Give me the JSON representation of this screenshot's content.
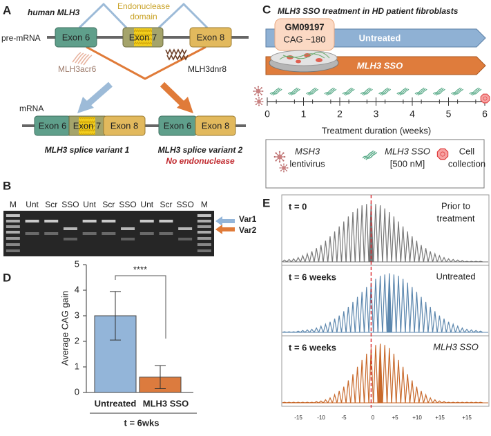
{
  "panel_a": {
    "label": "A",
    "gene": "human MLH3",
    "domain_line1": "Endonuclease",
    "domain_line2": "domain",
    "pre_mrna": "pre-mRNA",
    "exons": [
      "Exon 6",
      "Exon 7",
      "Exon 8"
    ],
    "sso1": "MLH3acr6",
    "sso2": "MLH3dnr8",
    "mrna": "mRNA",
    "variant1_exons": [
      "Exon 6",
      "Exon 7",
      "Exon 8"
    ],
    "variant2_exons": [
      "Exon 6",
      "Exon 8"
    ],
    "variant1": "MLH3 splice variant 1",
    "variant2": "MLH3 splice variant 2",
    "variant2_note": "No endonuclease"
  },
  "panel_b": {
    "label": "B",
    "lanes": [
      "M",
      "Unt",
      "Scr",
      "SSO",
      "Unt",
      "Scr",
      "SSO",
      "Unt",
      "Scr",
      "SSO",
      "M"
    ],
    "bands": [
      "Var1",
      "Var2"
    ]
  },
  "panel_c": {
    "label": "C",
    "title": "MLH3 SSO treatment in HD patient fibroblasts",
    "cell_line": "GM09197",
    "cag": "CAG ~180",
    "arms": [
      "Untreated",
      "MLH3 SSO"
    ],
    "xlim": [
      0,
      6
    ],
    "xticks": [
      0,
      1,
      2,
      3,
      4,
      5,
      6
    ],
    "xlabel": "Treatment duration (weeks)",
    "legend": [
      {
        "line1": "MSH3",
        "line2": "lentivirus"
      },
      {
        "line1": "MLH3 SSO",
        "line2": "[500 nM]"
      },
      {
        "line1": "Cell",
        "line2": "collection"
      }
    ]
  },
  "chart_data": {
    "type": "bar",
    "label": "D",
    "ylabel": "Average CAG gain",
    "categories": [
      "Untreated",
      "MLH3 SSO"
    ],
    "values": [
      3,
      0.6
    ],
    "errors": [
      0.95,
      0.45
    ],
    "colors": [
      "#93b5d9",
      "#dc7b3e"
    ],
    "ylim": [
      0,
      5
    ],
    "yticks": [
      0,
      1,
      2,
      3,
      4,
      5
    ],
    "annotation": "****",
    "group_label": "t = 6wks"
  },
  "panel_e": {
    "label": "E",
    "ylim": [
      0,
      100
    ],
    "x_labels": [
      "-15",
      "-10",
      "-5",
      "0",
      "+5",
      "+10",
      "+15",
      "+15"
    ],
    "traces": [
      {
        "title": "t = 0",
        "note": [
          "Prior to",
          "treatment"
        ],
        "color": "#777777",
        "values": [
          3,
          4,
          5,
          7,
          10,
          13,
          17,
          22,
          27,
          34,
          41,
          49,
          57,
          65,
          73,
          80,
          86,
          91,
          93,
          95,
          93,
          91,
          86,
          80,
          73,
          65,
          57,
          49,
          41,
          34,
          27,
          22,
          17,
          13,
          10,
          7,
          5,
          4,
          3,
          2,
          1,
          1,
          1,
          1
        ]
      },
      {
        "title": "t = 6 weeks",
        "note": [
          "Untreated"
        ],
        "color": "#5b86ad",
        "values": [
          1,
          1,
          1,
          2,
          3,
          4,
          5,
          7,
          10,
          13,
          17,
          22,
          27,
          34,
          41,
          49,
          57,
          65,
          73,
          80,
          86,
          91,
          93,
          95,
          93,
          91,
          86,
          80,
          73,
          65,
          57,
          49,
          41,
          34,
          27,
          22,
          17,
          13,
          10,
          7,
          5,
          4,
          3,
          2
        ]
      },
      {
        "title": "t = 6 weeks",
        "note": [
          "MLH3 SSO"
        ],
        "color": "#c8692b",
        "values": [
          1,
          1,
          1,
          1,
          1,
          1,
          1,
          2,
          3,
          5,
          8,
          13,
          19,
          26,
          36,
          46,
          58,
          69,
          79,
          88,
          93,
          95,
          93,
          88,
          79,
          69,
          58,
          46,
          36,
          26,
          19,
          13,
          8,
          5,
          3,
          2,
          1,
          1,
          1,
          1,
          1,
          1,
          1,
          1
        ]
      }
    ]
  }
}
